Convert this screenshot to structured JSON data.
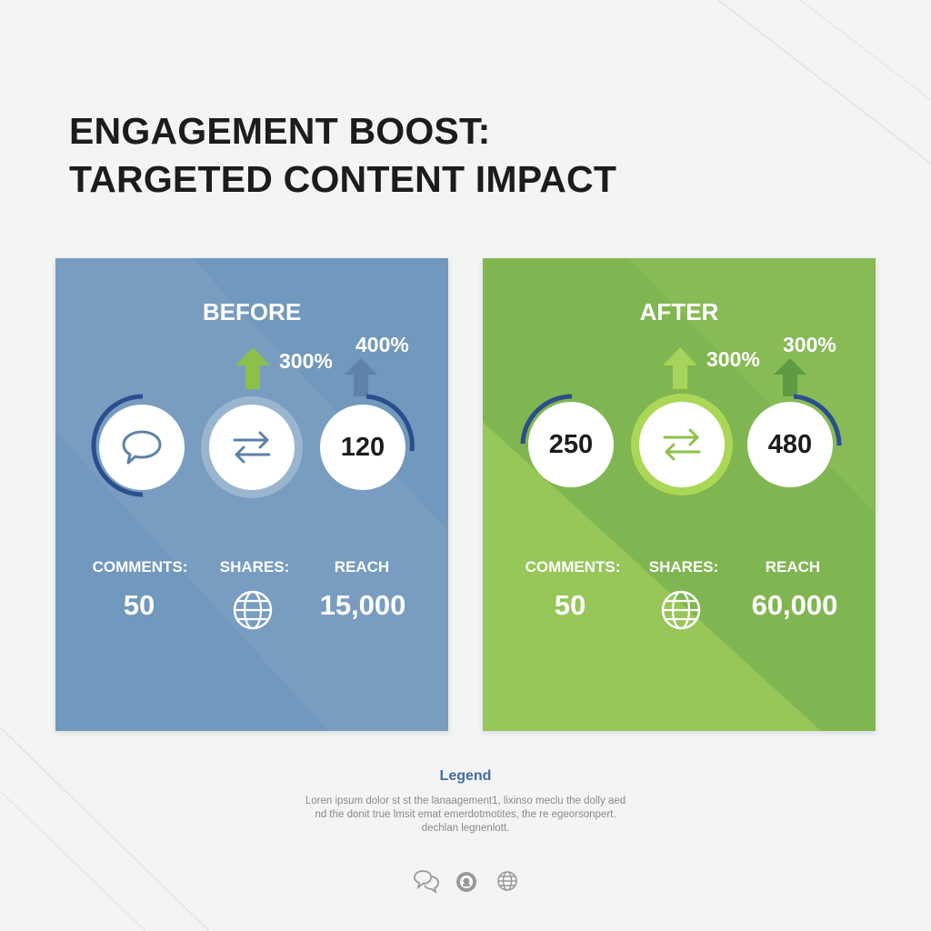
{
  "title": {
    "line1": "ENGAGEMENT BOOST:",
    "line2": "TARGETED CONTENT IMPACT"
  },
  "panels": {
    "before": {
      "label": "BEFORE",
      "color": "#7198bd",
      "pct_left": "300%",
      "pct_right": "400%",
      "circle_left_icon": "speech-bubble-icon",
      "circle_middle_icon": "swap-arrows-icon",
      "circle_right_value": "120",
      "col1_label": "COMMENTS:",
      "col2_label": "SHARES:",
      "col3_label": "REACH",
      "col1_value": "50",
      "col2_icon": "globe-icon",
      "col3_value": "15,000"
    },
    "after": {
      "label": "AFTER",
      "color": "#86bb56",
      "pct_left": "300%",
      "pct_right": "300%",
      "circle_left_value": "250",
      "circle_middle_icon": "swap-arrows-icon",
      "circle_right_value": "480",
      "col1_label": "COMMENTS:",
      "col2_label": "SHARES:",
      "col3_label": "REACH",
      "col1_value": "50",
      "col2_icon": "globe-icon",
      "col3_value": "60,000"
    }
  },
  "legend": {
    "title": "Legend",
    "line1": "Loren ipsum dolor st st the lanaagement1, lixinso meclu the dolly aed",
    "line2": "nd the donit true lmsit emat emerdotmotites, the re egeorsonpert.",
    "line3": "dechlan legnenlott.",
    "icons": [
      "chat-bubbles-icon",
      "badge-icon",
      "globe-icon"
    ]
  },
  "colors": {
    "accent_blue": "#2b4f8c",
    "arrow_green": "#8dc04a",
    "arrow_slate": "#5e82a8"
  }
}
